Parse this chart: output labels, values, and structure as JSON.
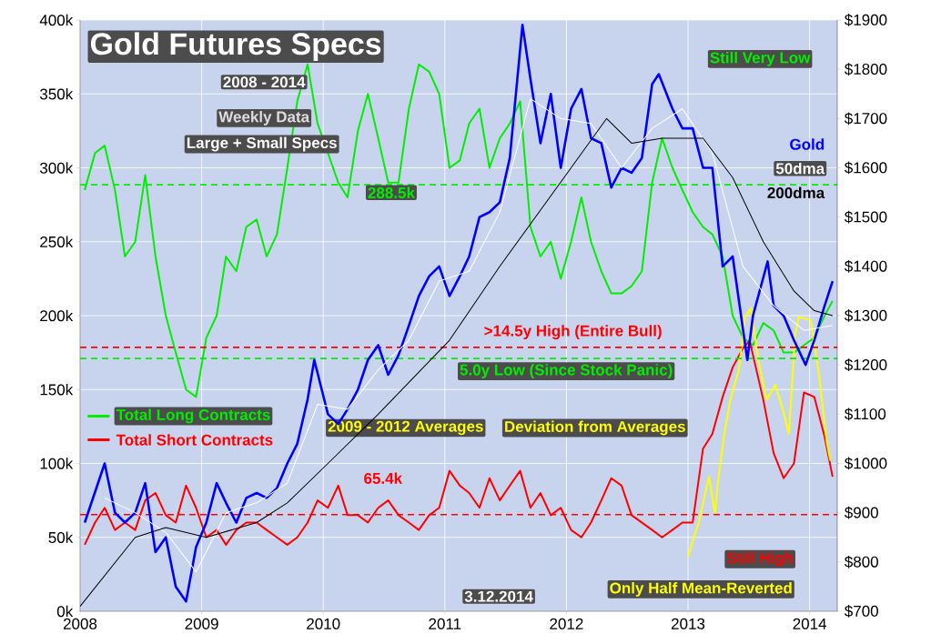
{
  "chart_data": {
    "type": "line",
    "title": "Gold Futures Specs",
    "subtitle": "2008 - 2014",
    "xlim": [
      "2008-01-01",
      "2014-03-25"
    ],
    "xticks": [
      "2008",
      "2009",
      "2010",
      "2011",
      "2012",
      "2013",
      "2014"
    ],
    "ylim": [
      0,
      400
    ],
    "yticks": [
      {
        "value": 0,
        "label": "0k"
      },
      {
        "value": 50,
        "label": "50k"
      },
      {
        "value": 100,
        "label": "100k"
      },
      {
        "value": 150,
        "label": "150k"
      },
      {
        "value": 200,
        "label": "200k"
      },
      {
        "value": 250,
        "label": "250k"
      },
      {
        "value": 300,
        "label": "300k"
      },
      {
        "value": 350,
        "label": "350k"
      },
      {
        "value": 400,
        "label": "400k"
      }
    ],
    "y2lim": [
      700,
      1900
    ],
    "y2ticks": [
      {
        "value": 700,
        "label": "$700"
      },
      {
        "value": 800,
        "label": "$800"
      },
      {
        "value": 900,
        "label": "$900"
      },
      {
        "value": 1000,
        "label": "$1000"
      },
      {
        "value": 1100,
        "label": "$1100"
      },
      {
        "value": 1200,
        "label": "$1200"
      },
      {
        "value": 1300,
        "label": "$1300"
      },
      {
        "value": 1400,
        "label": "$1400"
      },
      {
        "value": 1500,
        "label": "$1500"
      },
      {
        "value": 1600,
        "label": "$1600"
      },
      {
        "value": 1700,
        "label": "$1700"
      },
      {
        "value": 1800,
        "label": "$1800"
      },
      {
        "value": 1900,
        "label": "$1900"
      }
    ],
    "grid": true,
    "legend": "left",
    "series": [
      {
        "name": "Total Long Contracts",
        "color": "#00ee00",
        "x": [
          "2008-01-15",
          "2008-02-15",
          "2008-03-15",
          "2008-04-15",
          "2008-05-15",
          "2008-06-15",
          "2008-07-15",
          "2008-08-15",
          "2008-09-15",
          "2008-10-15",
          "2008-11-15",
          "2008-12-15",
          "2009-01-15",
          "2009-02-15",
          "2009-03-15",
          "2009-04-15",
          "2009-05-15",
          "2009-06-15",
          "2009-07-15",
          "2009-08-15",
          "2009-09-15",
          "2009-10-15",
          "2009-11-15",
          "2009-12-15",
          "2010-01-15",
          "2010-02-15",
          "2010-03-15",
          "2010-04-15",
          "2010-05-15",
          "2010-06-15",
          "2010-07-15",
          "2010-08-15",
          "2010-09-15",
          "2010-10-15",
          "2010-11-15",
          "2010-12-15",
          "2011-01-15",
          "2011-02-15",
          "2011-03-15",
          "2011-04-15",
          "2011-05-15",
          "2011-06-15",
          "2011-07-15",
          "2011-08-15",
          "2011-09-15",
          "2011-10-15",
          "2011-11-15",
          "2011-12-15",
          "2012-01-15",
          "2012-02-15",
          "2012-03-15",
          "2012-04-15",
          "2012-05-15",
          "2012-06-15",
          "2012-07-15",
          "2012-08-15",
          "2012-09-15",
          "2012-10-15",
          "2012-11-15",
          "2012-12-15",
          "2013-01-15",
          "2013-02-15",
          "2013-03-15",
          "2013-04-15",
          "2013-05-15",
          "2013-06-15",
          "2013-07-15",
          "2013-08-15",
          "2013-09-15",
          "2013-10-15",
          "2013-11-15",
          "2013-12-15",
          "2014-01-15",
          "2014-02-15",
          "2014-03-11"
        ],
        "values": [
          285,
          310,
          315,
          285,
          240,
          250,
          295,
          240,
          200,
          175,
          150,
          145,
          185,
          200,
          240,
          230,
          260,
          265,
          240,
          255,
          300,
          345,
          370,
          330,
          310,
          290,
          280,
          325,
          350,
          320,
          290,
          290,
          340,
          370,
          365,
          350,
          300,
          305,
          330,
          340,
          300,
          320,
          330,
          345,
          260,
          240,
          250,
          225,
          250,
          280,
          250,
          230,
          215,
          215,
          220,
          230,
          290,
          320,
          300,
          285,
          270,
          260,
          255,
          240,
          200,
          185,
          180,
          195,
          190,
          175,
          175,
          180,
          185,
          200,
          210
        ]
      },
      {
        "name": "Total Short Contracts",
        "color": "#ff0000",
        "x": [
          "2008-01-15",
          "2008-02-15",
          "2008-03-15",
          "2008-04-15",
          "2008-05-15",
          "2008-06-15",
          "2008-07-15",
          "2008-08-15",
          "2008-09-15",
          "2008-10-15",
          "2008-11-15",
          "2008-12-15",
          "2009-01-15",
          "2009-02-15",
          "2009-03-15",
          "2009-04-15",
          "2009-05-15",
          "2009-06-15",
          "2009-07-15",
          "2009-08-15",
          "2009-09-15",
          "2009-10-15",
          "2009-11-15",
          "2009-12-15",
          "2010-01-15",
          "2010-02-15",
          "2010-03-15",
          "2010-04-15",
          "2010-05-15",
          "2010-06-15",
          "2010-07-15",
          "2010-08-15",
          "2010-09-15",
          "2010-10-15",
          "2010-11-15",
          "2010-12-15",
          "2011-01-15",
          "2011-02-15",
          "2011-03-15",
          "2011-04-15",
          "2011-05-15",
          "2011-06-15",
          "2011-07-15",
          "2011-08-15",
          "2011-09-15",
          "2011-10-15",
          "2011-11-15",
          "2011-12-15",
          "2012-01-15",
          "2012-02-15",
          "2012-03-15",
          "2012-04-15",
          "2012-05-15",
          "2012-06-15",
          "2012-07-15",
          "2012-08-15",
          "2012-09-15",
          "2012-10-15",
          "2012-11-15",
          "2012-12-15",
          "2013-01-15",
          "2013-02-15",
          "2013-03-15",
          "2013-04-15",
          "2013-05-15",
          "2013-06-15",
          "2013-07-05",
          "2013-08-15",
          "2013-09-15",
          "2013-10-15",
          "2013-11-15",
          "2013-12-15",
          "2014-01-15",
          "2014-02-15",
          "2014-03-11"
        ],
        "values": [
          45,
          60,
          70,
          55,
          60,
          55,
          75,
          80,
          65,
          60,
          85,
          70,
          50,
          55,
          45,
          55,
          60,
          60,
          55,
          50,
          45,
          50,
          60,
          75,
          70,
          85,
          65,
          65,
          60,
          70,
          75,
          65,
          60,
          55,
          65,
          70,
          95,
          85,
          80,
          70,
          90,
          75,
          85,
          95,
          70,
          80,
          65,
          70,
          55,
          50,
          60,
          75,
          90,
          85,
          65,
          60,
          55,
          50,
          55,
          60,
          60,
          110,
          120,
          145,
          165,
          178,
          183,
          143,
          107,
          90,
          100,
          148,
          145,
          118,
          91
        ]
      },
      {
        "color": "#ffff00",
        "x": [
          "2013-01-01",
          "2013-02-03",
          "2013-03-05",
          "2013-03-23",
          "2013-04-01",
          "2013-04-20",
          "2013-05-08",
          "2013-06-03",
          "2013-06-21",
          "2013-07-09",
          "2013-07-31",
          "2013-08-25",
          "2013-09-20",
          "2013-10-12",
          "2013-10-31",
          "2013-11-18",
          "2013-11-29",
          "2014-01-04",
          "2014-01-30",
          "2014-02-21",
          "2014-03-04"
        ],
        "values": [
          37,
          61,
          91,
          66,
          88,
          120,
          143,
          164,
          199,
          205,
          170,
          143,
          153,
          137,
          120,
          186,
          199,
          197,
          159,
          115,
          102
        ]
      },
      {
        "name": "Gold",
        "color": "#0000ff",
        "axis": "y2",
        "x": [
          "2008-01-15",
          "2008-03-15",
          "2008-04-15",
          "2008-05-15",
          "2008-06-15",
          "2008-07-15",
          "2008-08-15",
          "2008-09-15",
          "2008-10-15",
          "2008-11-15",
          "2008-12-15",
          "2009-01-15",
          "2009-02-15",
          "2009-03-15",
          "2009-04-15",
          "2009-05-15",
          "2009-06-15",
          "2009-07-15",
          "2009-08-15",
          "2009-09-15",
          "2009-10-15",
          "2009-11-15",
          "2009-12-05",
          "2010-01-15",
          "2010-02-15",
          "2010-03-15",
          "2010-04-15",
          "2010-05-15",
          "2010-06-15",
          "2010-07-15",
          "2010-08-15",
          "2010-09-15",
          "2010-10-15",
          "2010-11-15",
          "2010-12-15",
          "2011-01-15",
          "2011-02-15",
          "2011-03-15",
          "2011-04-15",
          "2011-05-15",
          "2011-06-15",
          "2011-07-15",
          "2011-08-22",
          "2011-09-15",
          "2011-10-15",
          "2011-11-15",
          "2011-12-15",
          "2012-01-15",
          "2012-02-15",
          "2012-03-15",
          "2012-04-15",
          "2012-05-15",
          "2012-06-15",
          "2012-07-15",
          "2012-08-15",
          "2012-09-15",
          "2012-10-05",
          "2012-11-15",
          "2012-12-15",
          "2013-01-15",
          "2013-02-15",
          "2013-03-15",
          "2013-04-15",
          "2013-05-15",
          "2013-06-28",
          "2013-07-15",
          "2013-08-28",
          "2013-09-15",
          "2013-10-15",
          "2013-11-15",
          "2013-12-20",
          "2014-01-15",
          "2014-02-15",
          "2014-03-11"
        ],
        "values": [
          880,
          1000,
          900,
          880,
          900,
          960,
          820,
          850,
          750,
          720,
          830,
          880,
          960,
          920,
          880,
          930,
          940,
          930,
          950,
          1000,
          1040,
          1130,
          1210,
          1100,
          1080,
          1110,
          1150,
          1210,
          1240,
          1180,
          1220,
          1280,
          1340,
          1380,
          1400,
          1340,
          1380,
          1420,
          1500,
          1510,
          1530,
          1620,
          1890,
          1780,
          1650,
          1750,
          1600,
          1720,
          1760,
          1660,
          1650,
          1560,
          1600,
          1590,
          1620,
          1770,
          1790,
          1720,
          1680,
          1680,
          1600,
          1600,
          1400,
          1420,
          1210,
          1300,
          1410,
          1320,
          1300,
          1250,
          1200,
          1250,
          1320,
          1370
        ]
      },
      {
        "name": "50dma",
        "color": "#ffffff",
        "axis": "y2",
        "x": [
          "2008-03-15",
          "2008-06-15",
          "2008-09-15",
          "2008-12-15",
          "2009-03-15",
          "2009-06-15",
          "2009-09-15",
          "2009-12-15",
          "2010-03-15",
          "2010-06-15",
          "2010-09-15",
          "2010-12-15",
          "2011-03-15",
          "2011-06-15",
          "2011-09-15",
          "2011-12-15",
          "2012-03-15",
          "2012-06-15",
          "2012-09-15",
          "2012-12-15",
          "2013-03-15",
          "2013-06-15",
          "2013-09-15",
          "2013-12-15",
          "2014-03-11"
        ],
        "values": [
          930,
          900,
          860,
          780,
          900,
          920,
          960,
          1120,
          1110,
          1190,
          1250,
          1370,
          1390,
          1510,
          1740,
          1700,
          1690,
          1600,
          1680,
          1720,
          1630,
          1400,
          1320,
          1270,
          1280
        ]
      },
      {
        "name": "200dma",
        "color": "#000000",
        "axis": "y2",
        "x": [
          "2008-01-01",
          "2008-06-15",
          "2008-09-15",
          "2009-01-15",
          "2009-06-15",
          "2009-09-15",
          "2010-01-15",
          "2010-06-15",
          "2011-01-15",
          "2011-06-15",
          "2012-01-15",
          "2012-05-01",
          "2012-07-15",
          "2012-10-15",
          "2013-02-15",
          "2013-05-15",
          "2013-08-15",
          "2013-11-15",
          "2014-01-15",
          "2014-03-11"
        ],
        "values": [
          710,
          850,
          870,
          850,
          880,
          920,
          1000,
          1100,
          1250,
          1400,
          1600,
          1700,
          1650,
          1660,
          1660,
          1580,
          1450,
          1350,
          1310,
          1300
        ]
      }
    ],
    "ref_lines": [
      {
        "axis": "y",
        "value": 288.5,
        "label": "288.5k",
        "color": "#00ee00",
        "line_style": "dashed"
      },
      {
        "axis": "y",
        "value": 65.4,
        "label": "65.4k",
        "color": "#ff0000",
        "line_style": "dashed"
      },
      {
        "axis": "y",
        "value": 178.5,
        "label": ">14.5y High (Entire Bull)",
        "color": "#ff0000",
        "line_style": "dashed"
      },
      {
        "axis": "y",
        "value": 171,
        "label": "5.0y Low (Since Stock Panic)",
        "color": "#00ee00",
        "line_style": "dashed"
      }
    ],
    "annotations": [
      "Weekly Data",
      "Large + Small Specs",
      "2009 - 2012 Averages",
      "Deviation from Averages",
      "Still Very Low",
      "Still High",
      "Only Half Mean-Reverted",
      "3.12.2014"
    ]
  }
}
